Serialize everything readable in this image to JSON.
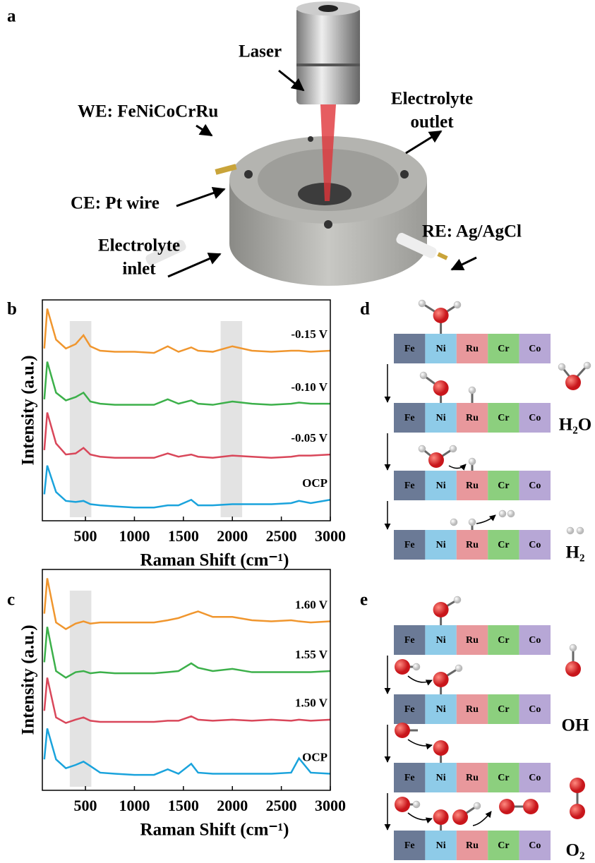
{
  "panels": {
    "a": "a",
    "b": "b",
    "c": "c",
    "d": "d",
    "e": "e"
  },
  "setup": {
    "laser": "Laser",
    "we": "WE: FeNiCoCrRu",
    "outlet": [
      "Electrolyte",
      "outlet"
    ],
    "ce": "CE: Pt wire",
    "inlet": [
      "Electrolyte",
      "inlet"
    ],
    "re": "RE: Ag/AgCl"
  },
  "chart_data": [
    {
      "type": "line",
      "xlabel": "Raman Shift (cm⁻¹)",
      "ylabel": "Intensity (a.u.)",
      "x": [
        80,
        110,
        200,
        300,
        400,
        480,
        550,
        650,
        800,
        1000,
        1200,
        1340,
        1450,
        1580,
        1650,
        1800,
        2000,
        2200,
        2400,
        2600,
        2680,
        2800,
        3000
      ],
      "xlim": [
        60,
        3000
      ],
      "xticks": [
        500,
        1000,
        1500,
        2000,
        2500,
        3000
      ],
      "ylim": [
        0,
        10
      ],
      "highlight_ranges": [
        [
          340,
          560
        ],
        [
          1880,
          2100
        ]
      ],
      "highlight_color": "#e3e3e3",
      "series": [
        {
          "name": "-0.15 V",
          "color": "#f0962e",
          "values": [
            7.8,
            9.6,
            8.2,
            7.8,
            8.0,
            8.4,
            7.9,
            7.7,
            7.65,
            7.65,
            7.6,
            7.9,
            7.65,
            7.85,
            7.7,
            7.65,
            7.9,
            7.7,
            7.65,
            7.7,
            7.7,
            7.65,
            7.7
          ]
        },
        {
          "name": "-0.10 V",
          "color": "#3cb04a",
          "values": [
            5.5,
            7.2,
            5.8,
            5.45,
            5.6,
            5.8,
            5.4,
            5.3,
            5.25,
            5.25,
            5.25,
            5.5,
            5.3,
            5.45,
            5.3,
            5.25,
            5.4,
            5.3,
            5.25,
            5.3,
            5.35,
            5.3,
            5.3
          ]
        },
        {
          "name": "-0.05 V",
          "color": "#d9475a",
          "values": [
            3.2,
            4.9,
            3.5,
            3.0,
            3.05,
            3.3,
            3.0,
            2.9,
            2.85,
            2.85,
            2.85,
            3.05,
            2.9,
            3.0,
            2.9,
            2.85,
            2.95,
            2.9,
            2.85,
            2.9,
            2.95,
            2.95,
            3.0
          ]
        },
        {
          "name": "OCP",
          "color": "#1aa3dc",
          "values": [
            1.2,
            2.5,
            1.3,
            0.9,
            0.85,
            0.9,
            0.75,
            0.7,
            0.65,
            0.6,
            0.6,
            0.7,
            0.7,
            0.95,
            0.7,
            0.7,
            0.75,
            0.75,
            0.75,
            0.8,
            0.9,
            0.8,
            0.95
          ]
        }
      ]
    },
    {
      "type": "line",
      "xlabel": "Raman Shift (cm⁻¹)",
      "ylabel": "Intensity (a.u.)",
      "x": [
        80,
        110,
        200,
        300,
        400,
        480,
        550,
        650,
        800,
        1000,
        1200,
        1340,
        1450,
        1580,
        1650,
        1800,
        2000,
        2200,
        2400,
        2600,
        2680,
        2800,
        3000
      ],
      "xlim": [
        60,
        3000
      ],
      "xticks": [
        500,
        1000,
        1500,
        2000,
        2500,
        3000
      ],
      "ylim": [
        0,
        10
      ],
      "highlight_ranges": [
        [
          340,
          560
        ]
      ],
      "highlight_color": "#e3e3e3",
      "series": [
        {
          "name": "1.60 V",
          "color": "#f0962e",
          "values": [
            8.0,
            9.6,
            7.6,
            7.3,
            7.55,
            7.65,
            7.55,
            7.6,
            7.6,
            7.6,
            7.6,
            7.7,
            7.8,
            8.0,
            8.1,
            7.85,
            7.85,
            7.7,
            7.65,
            7.7,
            7.65,
            7.6,
            7.65
          ]
        },
        {
          "name": "1.55 V",
          "color": "#3cb04a",
          "values": [
            5.8,
            7.4,
            5.4,
            5.1,
            5.35,
            5.4,
            5.3,
            5.35,
            5.3,
            5.3,
            5.3,
            5.35,
            5.4,
            5.75,
            5.55,
            5.4,
            5.5,
            5.35,
            5.35,
            5.35,
            5.35,
            5.35,
            5.4
          ]
        },
        {
          "name": "1.50 V",
          "color": "#d9475a",
          "values": [
            3.6,
            5.1,
            3.3,
            3.05,
            3.2,
            3.3,
            3.15,
            3.1,
            3.1,
            3.1,
            3.1,
            3.15,
            3.15,
            3.35,
            3.2,
            3.15,
            3.2,
            3.15,
            3.2,
            3.15,
            3.2,
            3.15,
            3.2
          ]
        },
        {
          "name": "OCP",
          "color": "#1aa3dc",
          "values": [
            1.4,
            2.8,
            1.4,
            1.0,
            1.15,
            1.3,
            1.1,
            0.8,
            0.75,
            0.7,
            0.7,
            0.95,
            0.75,
            1.2,
            0.8,
            0.75,
            0.75,
            0.75,
            0.75,
            0.8,
            1.45,
            0.8,
            0.75
          ]
        }
      ]
    }
  ],
  "surface": {
    "elements": [
      "Fe",
      "Ni",
      "Ru",
      "Cr",
      "Co"
    ],
    "colors": [
      "#6b7a96",
      "#8ecbe8",
      "#e8989c",
      "#8ccf7e",
      "#b7a7d6"
    ]
  },
  "species": {
    "h2o": "H₂O",
    "h2": "H₂",
    "oh": "OH",
    "o2": "O₂"
  }
}
